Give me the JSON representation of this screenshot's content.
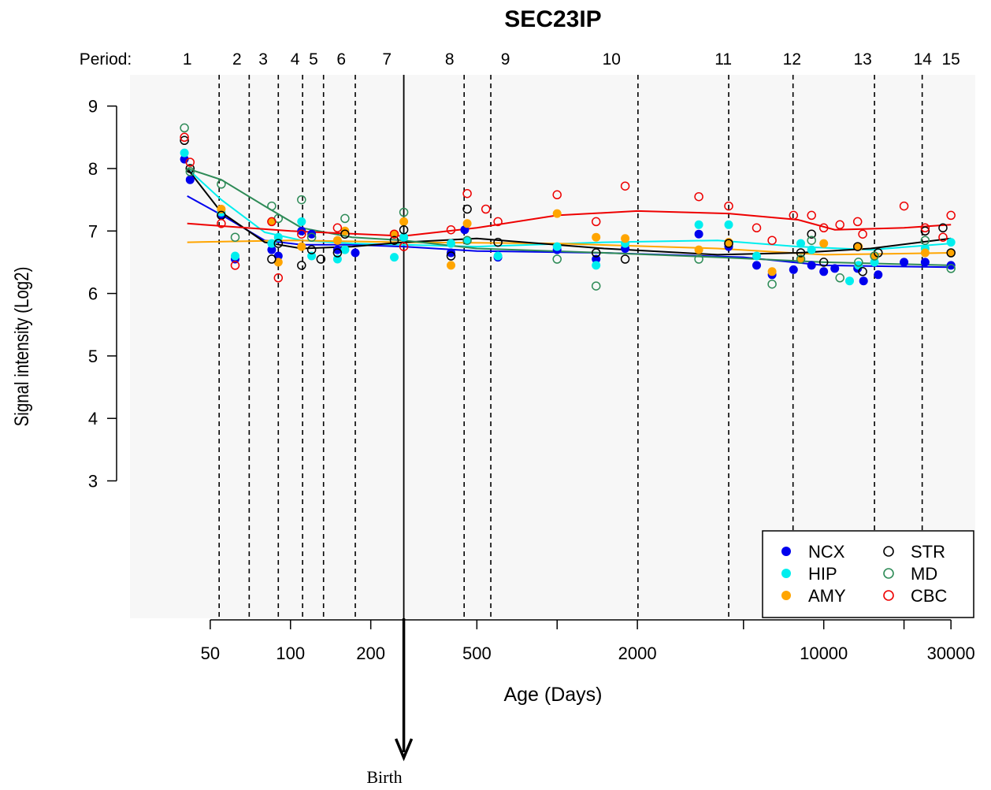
{
  "chart_data": {
    "type": "scatter",
    "title": "SEC23IP",
    "xlabel": "Age (Days)",
    "ylabel": "Signal intensity (Log2)",
    "x_scale": "log",
    "xlim": [
      25,
      37000
    ],
    "ylim": [
      0.8,
      9.5
    ],
    "x_ticks": [
      {
        "value": 50,
        "label": "50"
      },
      {
        "value": 100,
        "label": "100"
      },
      {
        "value": 200,
        "label": "200"
      },
      {
        "value": 500,
        "label": "500"
      },
      {
        "value": 2000,
        "label": "2000"
      },
      {
        "value": 10000,
        "label": "10000"
      },
      {
        "value": 30000,
        "label": "30000"
      }
    ],
    "y_ticks": [
      3,
      4,
      5,
      6,
      7,
      8,
      9
    ],
    "period_prefix": "Period:",
    "periods": [
      {
        "label": "1",
        "x": 41
      },
      {
        "label": "2",
        "x": 63
      },
      {
        "label": "3",
        "x": 79
      },
      {
        "label": "4",
        "x": 104
      },
      {
        "label": "5",
        "x": 122
      },
      {
        "label": "6",
        "x": 155
      },
      {
        "label": "7",
        "x": 230
      },
      {
        "label": "8",
        "x": 395
      },
      {
        "label": "9",
        "x": 640
      },
      {
        "label": "10",
        "x": 1600
      },
      {
        "label": "11",
        "x": 4200
      },
      {
        "label": "12",
        "x": 7600
      },
      {
        "label": "13",
        "x": 14000
      },
      {
        "label": "14",
        "x": 23500
      },
      {
        "label": "15",
        "x": 30000
      }
    ],
    "period_boundaries": [
      54,
      70,
      90,
      111,
      133,
      175,
      448,
      564,
      2010,
      4400,
      7670,
      15500,
      23400
    ],
    "birth": {
      "x": 266,
      "label": "Birth"
    },
    "legend_position": "bottom-right",
    "series": [
      {
        "name": "NCX",
        "color": "#0000ee",
        "marker": "filled",
        "trend": [
          [
            41,
            7.56
          ],
          [
            55,
            7.26
          ],
          [
            80,
            6.85
          ],
          [
            110,
            6.78
          ],
          [
            170,
            6.78
          ],
          [
            266,
            6.75
          ],
          [
            500,
            6.68
          ],
          [
            1500,
            6.65
          ],
          [
            5000,
            6.58
          ],
          [
            10000,
            6.45
          ],
          [
            30000,
            6.42
          ]
        ],
        "points": [
          [
            40,
            8.15
          ],
          [
            42,
            7.82
          ],
          [
            55,
            7.25
          ],
          [
            62,
            6.55
          ],
          [
            85,
            6.7
          ],
          [
            90,
            6.6
          ],
          [
            110,
            7.0
          ],
          [
            120,
            6.95
          ],
          [
            150,
            6.7
          ],
          [
            175,
            6.65
          ],
          [
            266,
            6.9
          ],
          [
            400,
            6.65
          ],
          [
            450,
            7.02
          ],
          [
            600,
            6.58
          ],
          [
            1000,
            6.7
          ],
          [
            1400,
            6.55
          ],
          [
            1800,
            6.72
          ],
          [
            3400,
            6.95
          ],
          [
            4400,
            6.75
          ],
          [
            5600,
            6.45
          ],
          [
            6400,
            6.3
          ],
          [
            7700,
            6.38
          ],
          [
            9000,
            6.45
          ],
          [
            10000,
            6.35
          ],
          [
            11000,
            6.4
          ],
          [
            13400,
            6.4
          ],
          [
            14100,
            6.2
          ],
          [
            16000,
            6.3
          ],
          [
            20000,
            6.5
          ],
          [
            24000,
            6.5
          ],
          [
            30000,
            6.45
          ]
        ]
      },
      {
        "name": "HIP",
        "color": "#00eeee",
        "marker": "filled",
        "trend": [
          [
            41,
            8.0
          ],
          [
            55,
            7.5
          ],
          [
            80,
            6.98
          ],
          [
            110,
            6.85
          ],
          [
            170,
            6.8
          ],
          [
            266,
            6.78
          ],
          [
            500,
            6.75
          ],
          [
            1500,
            6.82
          ],
          [
            4000,
            6.85
          ],
          [
            8000,
            6.75
          ],
          [
            15000,
            6.7
          ],
          [
            30000,
            6.8
          ]
        ],
        "points": [
          [
            40,
            8.25
          ],
          [
            55,
            7.3
          ],
          [
            62,
            6.6
          ],
          [
            85,
            6.8
          ],
          [
            90,
            6.9
          ],
          [
            110,
            7.15
          ],
          [
            120,
            6.6
          ],
          [
            150,
            6.55
          ],
          [
            160,
            6.7
          ],
          [
            245,
            6.58
          ],
          [
            266,
            6.9
          ],
          [
            400,
            6.8
          ],
          [
            460,
            6.85
          ],
          [
            600,
            6.6
          ],
          [
            1000,
            6.75
          ],
          [
            1400,
            6.45
          ],
          [
            1800,
            6.8
          ],
          [
            3400,
            7.1
          ],
          [
            4400,
            7.1
          ],
          [
            5600,
            6.6
          ],
          [
            8200,
            6.8
          ],
          [
            9000,
            6.7
          ],
          [
            12500,
            6.2
          ],
          [
            13500,
            6.45
          ],
          [
            15500,
            6.5
          ],
          [
            24000,
            6.72
          ],
          [
            30000,
            6.82
          ]
        ]
      },
      {
        "name": "AMY",
        "color": "#ffa500",
        "marker": "filled",
        "trend": [
          [
            41,
            6.82
          ],
          [
            100,
            6.85
          ],
          [
            266,
            6.82
          ],
          [
            1000,
            6.8
          ],
          [
            4000,
            6.72
          ],
          [
            10000,
            6.62
          ],
          [
            30000,
            6.65
          ]
        ],
        "points": [
          [
            55,
            7.35
          ],
          [
            85,
            7.15
          ],
          [
            90,
            6.5
          ],
          [
            110,
            6.75
          ],
          [
            150,
            6.85
          ],
          [
            160,
            7.0
          ],
          [
            245,
            6.95
          ],
          [
            266,
            7.15
          ],
          [
            400,
            6.45
          ],
          [
            460,
            7.12
          ],
          [
            1000,
            7.28
          ],
          [
            1400,
            6.9
          ],
          [
            1800,
            6.88
          ],
          [
            3400,
            6.7
          ],
          [
            4400,
            6.82
          ],
          [
            6400,
            6.35
          ],
          [
            8200,
            6.55
          ],
          [
            10000,
            6.8
          ],
          [
            13500,
            6.75
          ],
          [
            15500,
            6.6
          ],
          [
            24000,
            6.65
          ],
          [
            30000,
            6.65
          ]
        ]
      },
      {
        "name": "STR",
        "color": "#000000",
        "marker": "open",
        "trend": [
          [
            41,
            8.0
          ],
          [
            55,
            7.3
          ],
          [
            80,
            6.82
          ],
          [
            110,
            6.72
          ],
          [
            170,
            6.75
          ],
          [
            266,
            6.82
          ],
          [
            500,
            6.88
          ],
          [
            1500,
            6.72
          ],
          [
            4000,
            6.62
          ],
          [
            8000,
            6.65
          ],
          [
            15000,
            6.72
          ],
          [
            30000,
            6.88
          ]
        ],
        "points": [
          [
            40,
            8.45
          ],
          [
            42,
            8.0
          ],
          [
            55,
            7.25
          ],
          [
            85,
            6.55
          ],
          [
            90,
            6.8
          ],
          [
            110,
            6.45
          ],
          [
            120,
            6.7
          ],
          [
            130,
            6.55
          ],
          [
            150,
            6.65
          ],
          [
            160,
            6.95
          ],
          [
            245,
            6.85
          ],
          [
            266,
            7.02
          ],
          [
            400,
            6.6
          ],
          [
            460,
            7.35
          ],
          [
            600,
            6.82
          ],
          [
            1400,
            6.65
          ],
          [
            1800,
            6.55
          ],
          [
            4400,
            6.8
          ],
          [
            8200,
            6.65
          ],
          [
            9000,
            6.95
          ],
          [
            10000,
            6.5
          ],
          [
            13400,
            6.75
          ],
          [
            14000,
            6.35
          ],
          [
            16000,
            6.65
          ],
          [
            24000,
            7.0
          ],
          [
            28000,
            7.05
          ],
          [
            30000,
            6.65
          ]
        ]
      },
      {
        "name": "MD",
        "color": "#2e8b57",
        "marker": "open",
        "trend": [
          [
            41,
            8.0
          ],
          [
            55,
            7.82
          ],
          [
            80,
            7.4
          ],
          [
            110,
            7.05
          ],
          [
            170,
            6.9
          ],
          [
            266,
            6.85
          ],
          [
            500,
            6.72
          ],
          [
            1500,
            6.65
          ],
          [
            4000,
            6.58
          ],
          [
            10000,
            6.5
          ],
          [
            30000,
            6.45
          ]
        ],
        "points": [
          [
            40,
            8.65
          ],
          [
            42,
            7.95
          ],
          [
            55,
            7.75
          ],
          [
            62,
            6.9
          ],
          [
            85,
            7.4
          ],
          [
            90,
            7.2
          ],
          [
            110,
            7.5
          ],
          [
            120,
            6.9
          ],
          [
            160,
            7.2
          ],
          [
            266,
            7.3
          ],
          [
            460,
            6.85
          ],
          [
            1000,
            6.55
          ],
          [
            1400,
            6.12
          ],
          [
            3400,
            6.55
          ],
          [
            6400,
            6.15
          ],
          [
            8200,
            6.55
          ],
          [
            9000,
            6.85
          ],
          [
            11500,
            6.25
          ],
          [
            13500,
            6.5
          ],
          [
            15500,
            6.6
          ],
          [
            24000,
            6.85
          ],
          [
            30000,
            6.4
          ]
        ]
      },
      {
        "name": "CBC",
        "color": "#ee0000",
        "marker": "open",
        "trend": [
          [
            41,
            7.12
          ],
          [
            100,
            7.0
          ],
          [
            266,
            6.92
          ],
          [
            500,
            7.05
          ],
          [
            1000,
            7.25
          ],
          [
            2000,
            7.32
          ],
          [
            4400,
            7.28
          ],
          [
            8000,
            7.18
          ],
          [
            11000,
            7.02
          ],
          [
            20000,
            7.05
          ],
          [
            30000,
            7.1
          ]
        ],
        "points": [
          [
            40,
            8.5
          ],
          [
            42,
            8.1
          ],
          [
            55,
            7.12
          ],
          [
            62,
            6.45
          ],
          [
            85,
            7.15
          ],
          [
            90,
            6.25
          ],
          [
            110,
            6.95
          ],
          [
            150,
            7.05
          ],
          [
            245,
            6.95
          ],
          [
            266,
            6.75
          ],
          [
            400,
            7.02
          ],
          [
            460,
            7.6
          ],
          [
            540,
            7.35
          ],
          [
            600,
            7.15
          ],
          [
            1000,
            7.58
          ],
          [
            1400,
            7.15
          ],
          [
            1800,
            7.72
          ],
          [
            3400,
            7.55
          ],
          [
            4400,
            7.4
          ],
          [
            5600,
            7.05
          ],
          [
            6400,
            6.85
          ],
          [
            7700,
            7.25
          ],
          [
            9000,
            7.25
          ],
          [
            10000,
            7.05
          ],
          [
            11500,
            7.1
          ],
          [
            13400,
            7.15
          ],
          [
            14000,
            6.95
          ],
          [
            20000,
            7.4
          ],
          [
            24000,
            7.05
          ],
          [
            28000,
            6.9
          ],
          [
            30000,
            7.25
          ]
        ]
      }
    ]
  }
}
